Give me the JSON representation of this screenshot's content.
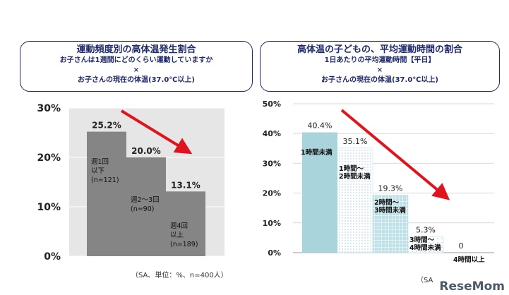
{
  "chart_data": [
    {
      "type": "bar",
      "title": "運動頻度別の高体温発生割合",
      "subtitle": [
        "お子さんは1週間にどのくらい運動していますか",
        "×",
        "お子さんの現在の体温(37.0℃以上)"
      ],
      "categories": [
        [
          "週1回",
          "以下",
          "(n=121)"
        ],
        [
          "週2～3回",
          "(n=90)"
        ],
        [
          "週4回",
          "以上",
          "(n=189)"
        ]
      ],
      "values": [
        25.2,
        20.0,
        13.1
      ],
      "value_labels": [
        "25.2%",
        "20.0%",
        "13.1%"
      ],
      "yticks": [
        "30%",
        "20%",
        "10%",
        "0%"
      ],
      "ylim": [
        0,
        30
      ],
      "note": "（SA、単位：%、n=400人）",
      "trend_color": "#e0141e",
      "bar_color": "#7a7a7a"
    },
    {
      "type": "bar",
      "title": "高体温の子どもの、平均運動時間の割合",
      "subtitle": [
        "1日あたりの平均運動時間【平日】",
        "×",
        "お子さんの現在の体温(37.0℃以上)"
      ],
      "categories": [
        [
          "1時間未満"
        ],
        [
          "1時間～",
          "2時間未満"
        ],
        [
          "2時間～",
          "3時間未満"
        ],
        [
          "3時間～",
          "4時間未満"
        ],
        [
          "4時間以上"
        ]
      ],
      "values": [
        40.4,
        35.1,
        19.3,
        5.3,
        0
      ],
      "value_labels": [
        "40.4%",
        "35.1%",
        "19.3%",
        "5.3%",
        "0"
      ],
      "yticks": [
        "50%",
        "40%",
        "30%",
        "20%",
        "10%",
        "0%"
      ],
      "ylim": [
        0,
        50
      ],
      "note": "（SA",
      "trend_color": "#e0141e",
      "bar_color": "#a9d4dc"
    }
  ],
  "brand": "ReseMom"
}
